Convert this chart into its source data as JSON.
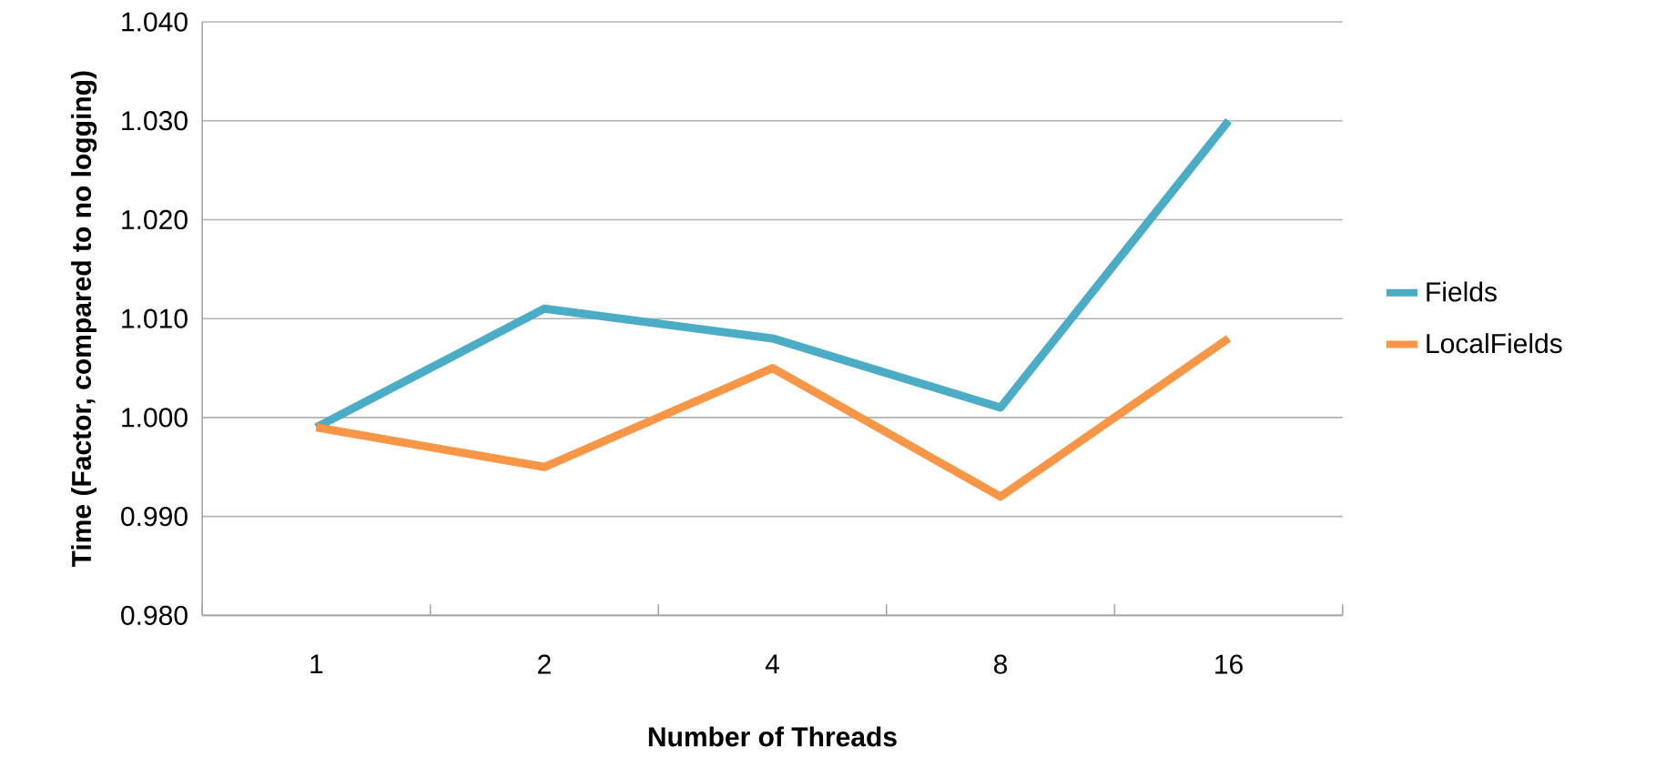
{
  "chart_data": {
    "type": "line",
    "xlabel": "Number of Threads",
    "ylabel": "Time (Factor, compared to no logging)",
    "categories": [
      "1",
      "2",
      "4",
      "8",
      "16"
    ],
    "series": [
      {
        "name": "Fields",
        "color": "#4bacc6",
        "values": [
          0.999,
          1.011,
          1.008,
          1.001,
          1.03
        ]
      },
      {
        "name": "LocalFields",
        "color": "#f79646",
        "values": [
          0.999,
          0.995,
          1.005,
          0.992,
          1.008
        ]
      }
    ],
    "ylim": [
      0.98,
      1.04
    ],
    "yticks": [
      {
        "value": 0.98,
        "label": "0.980"
      },
      {
        "value": 0.99,
        "label": "0.990"
      },
      {
        "value": 1.0,
        "label": "1.000"
      },
      {
        "value": 1.01,
        "label": "1.010"
      },
      {
        "value": 1.02,
        "label": "1.020"
      },
      {
        "value": 1.03,
        "label": "1.030"
      },
      {
        "value": 1.04,
        "label": "1.040"
      }
    ],
    "grid": "y",
    "legend": "right",
    "line_style": "solid"
  }
}
